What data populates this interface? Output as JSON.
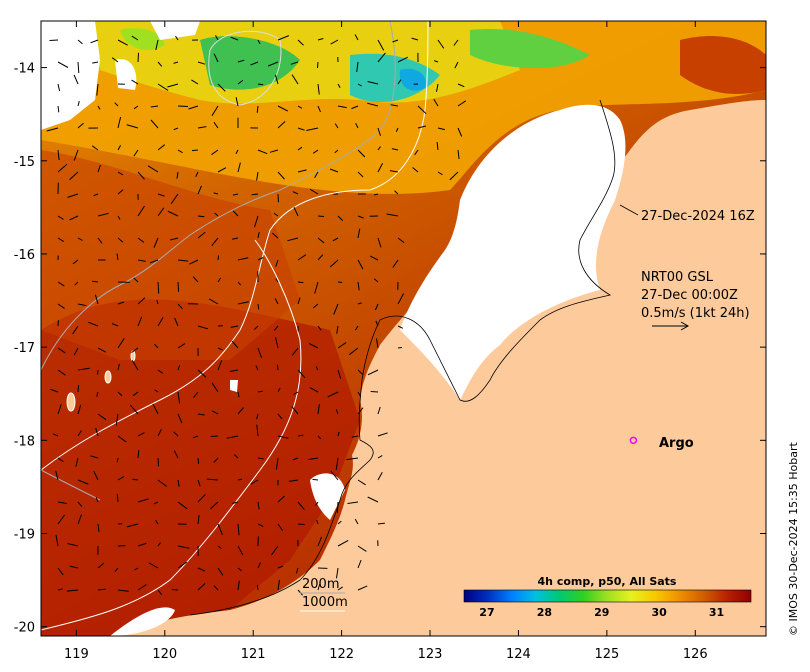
{
  "map": {
    "lon_ticks": [
      "119",
      "120",
      "121",
      "122",
      "123",
      "124",
      "125",
      "126"
    ],
    "lat_ticks": [
      "-14",
      "-15",
      "-16",
      "-17",
      "-18",
      "-19",
      "-20"
    ],
    "lon_range": [
      118.6,
      126.8
    ],
    "lat_range": [
      -20.1,
      -13.5
    ],
    "land_color": "#fdcb9b",
    "no_data_color": "#ffffff"
  },
  "annotations": {
    "swath_time": "27-Dec-2024 16Z",
    "current_model": "NRT00 GSL",
    "current_time": "27-Dec 00:00Z",
    "current_scale": "0.5m/s (1kt 24h)",
    "argo_label": "Argo",
    "argo_position": {
      "lon": 125.3,
      "lat": -18.0
    },
    "argo_color": "#ff00ff"
  },
  "contours": {
    "label_200": "200m",
    "label_1000": "1000m",
    "color_200": "#aaaaaa",
    "color_1000": "#ffffff"
  },
  "colorbar": {
    "title": "4h comp, p50, All Sats",
    "ticks": [
      "27",
      "28",
      "29",
      "30",
      "31"
    ],
    "range": [
      26.6,
      31.6
    ],
    "colors": [
      "#000080",
      "#0030c0",
      "#0080ff",
      "#00c0e0",
      "#00c870",
      "#30d020",
      "#a0e020",
      "#e8f020",
      "#f8c800",
      "#f09000",
      "#d06000",
      "#b82000",
      "#900000"
    ]
  },
  "credit": "© IMOS 30-Dec-2024 15:35 Hobart"
}
